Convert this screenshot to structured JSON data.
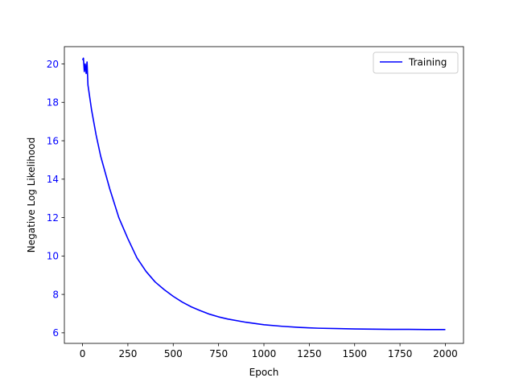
{
  "chart_data": {
    "type": "line",
    "title": "",
    "xlabel": "Epoch",
    "ylabel": "Negative Log Likelihood",
    "xlim": [
      -100,
      2100
    ],
    "ylim": [
      5.45,
      20.9
    ],
    "xticks": [
      0,
      250,
      500,
      750,
      1000,
      1250,
      1500,
      1750,
      2000
    ],
    "xtick_labels": [
      "0",
      "250",
      "500",
      "750",
      "1000",
      "1250",
      "1500",
      "1750",
      "2000"
    ],
    "yticks": [
      6,
      8,
      10,
      12,
      14,
      16,
      18,
      20
    ],
    "ytick_labels": [
      "6",
      "8",
      "10",
      "12",
      "14",
      "16",
      "18",
      "20"
    ],
    "ytick_color": "#0000ff",
    "xtick_color": "#000000",
    "grid": false,
    "legend": {
      "position": "upper-right",
      "entries": [
        "Training"
      ]
    },
    "series": [
      {
        "name": "Training",
        "color": "#0000ff",
        "x": [
          0,
          5,
          10,
          15,
          20,
          25,
          30,
          50,
          75,
          100,
          150,
          200,
          250,
          300,
          350,
          400,
          450,
          500,
          550,
          600,
          650,
          700,
          750,
          800,
          900,
          1000,
          1100,
          1200,
          1300,
          1400,
          1500,
          1600,
          1700,
          1800,
          1900,
          2000
        ],
        "y": [
          20.2,
          20.3,
          19.6,
          20.0,
          19.5,
          20.1,
          18.9,
          17.6,
          16.3,
          15.2,
          13.5,
          12.0,
          10.9,
          9.9,
          9.2,
          8.65,
          8.25,
          7.9,
          7.6,
          7.35,
          7.15,
          6.97,
          6.83,
          6.72,
          6.55,
          6.42,
          6.34,
          6.28,
          6.24,
          6.22,
          6.2,
          6.19,
          6.18,
          6.18,
          6.17,
          6.17
        ]
      }
    ]
  }
}
